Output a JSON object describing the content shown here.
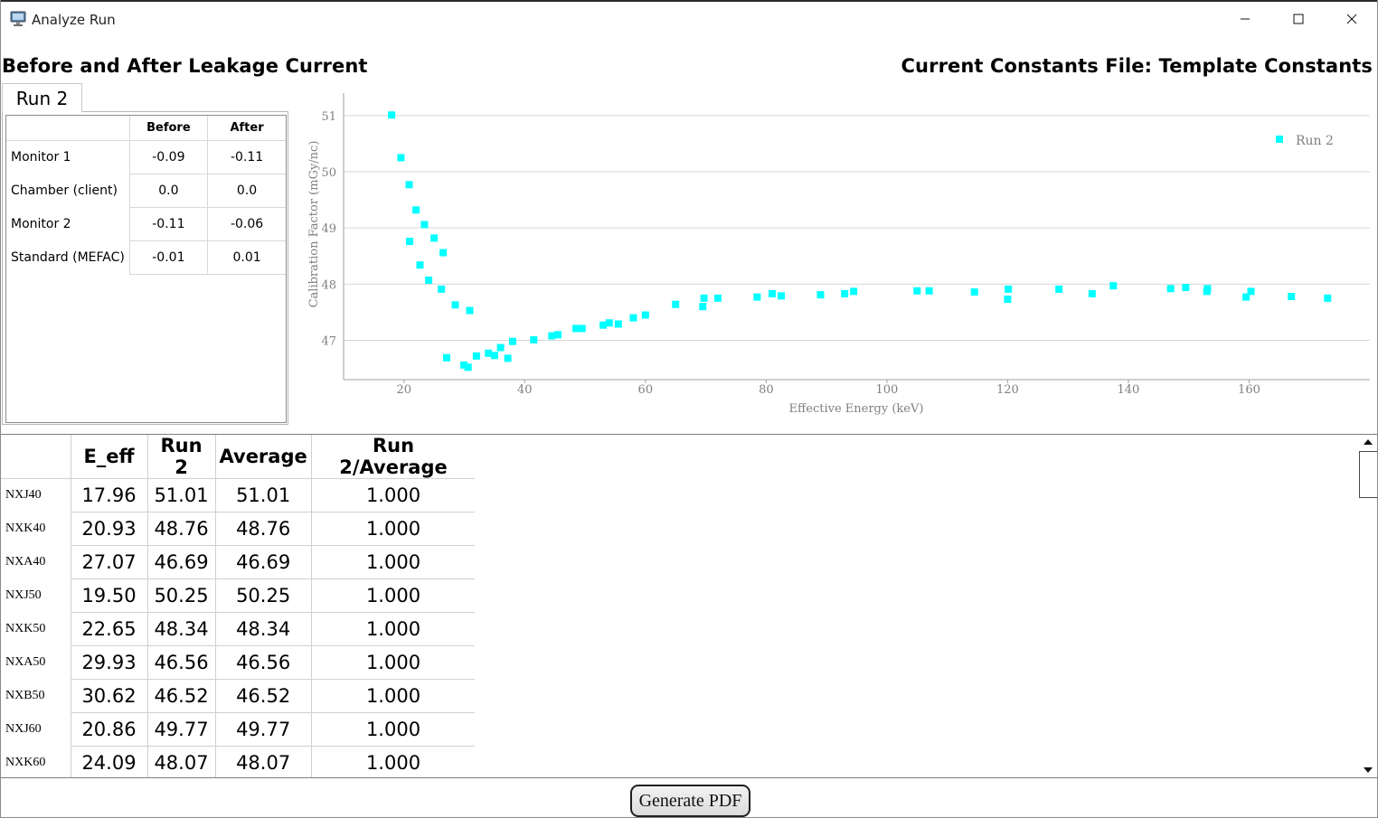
{
  "window": {
    "title": "Analyze Run",
    "icon": "monitor-app-icon"
  },
  "header": {
    "left_title": "Before and After Leakage Current",
    "right_title": "Current Constants File: Template Constants"
  },
  "tabs": [
    {
      "label": "Run 2",
      "selected": true
    }
  ],
  "leakage": {
    "columns": [
      "Before",
      "After"
    ],
    "rows": [
      {
        "label": "Monitor 1",
        "before": "-0.09",
        "after": "-0.11"
      },
      {
        "label": "Chamber (client)",
        "before": "0.0",
        "after": "0.0"
      },
      {
        "label": "Monitor 2",
        "before": "-0.11",
        "after": "-0.06"
      },
      {
        "label": "Standard (MEFAC)",
        "before": "-0.01",
        "after": "0.01"
      }
    ]
  },
  "chart_data": {
    "type": "scatter",
    "title": "",
    "xlabel": "Effective Energy (keV)",
    "ylabel": "Calibration Factor (mGy/nc)",
    "xlim": [
      10,
      180
    ],
    "ylim": [
      46.3,
      51.4
    ],
    "xticks": [
      "20",
      "40",
      "60",
      "80",
      "100",
      "120",
      "140",
      "160"
    ],
    "yticks": [
      "47",
      "48",
      "49",
      "50",
      "51"
    ],
    "grid": "horizontal",
    "legend": "top-right",
    "color": "#00ffff",
    "series": [
      {
        "name": "Run 2",
        "x": [
          17.96,
          19.5,
          20.86,
          20.93,
          22.0,
          22.65,
          23.4,
          24.09,
          25.0,
          26.2,
          27.07,
          26.5,
          28.5,
          29.93,
          30.62,
          30.9,
          32.0,
          34.0,
          35.0,
          36.0,
          37.2,
          38.0,
          41.5,
          44.5,
          45.5,
          48.5,
          49.5,
          53.0,
          54.0,
          55.5,
          58.0,
          60.0,
          65.0,
          69.5,
          69.7,
          72.0,
          78.5,
          81.0,
          82.5,
          89.0,
          93.0,
          94.5,
          105.0,
          107.0,
          114.5,
          120.0,
          120.1,
          128.5,
          134.0,
          137.5,
          147.0,
          149.5,
          153.0,
          153.1,
          159.5,
          160.3,
          167.0,
          173.0
        ],
        "y": [
          51.01,
          50.25,
          49.77,
          48.76,
          49.32,
          48.34,
          49.06,
          48.07,
          48.82,
          47.91,
          46.69,
          48.56,
          47.63,
          46.56,
          46.52,
          47.53,
          46.72,
          46.77,
          46.73,
          46.87,
          46.68,
          46.98,
          47.01,
          47.08,
          47.1,
          47.21,
          47.21,
          47.27,
          47.31,
          47.29,
          47.4,
          47.45,
          47.64,
          47.6,
          47.75,
          47.75,
          47.77,
          47.83,
          47.79,
          47.81,
          47.83,
          47.87,
          47.88,
          47.88,
          47.86,
          47.73,
          47.91,
          47.91,
          47.83,
          47.97,
          47.92,
          47.94,
          47.87,
          47.92,
          47.77,
          47.87,
          47.78,
          47.75
        ]
      }
    ]
  },
  "results": {
    "headers": [
      "E_eff",
      "Run 2",
      "Average",
      "Run 2/Average"
    ],
    "rows": [
      {
        "name": "NXJ40",
        "eeff": "17.96",
        "run": "51.01",
        "avg": "51.01",
        "ratio": "1.000"
      },
      {
        "name": "NXK40",
        "eeff": "20.93",
        "run": "48.76",
        "avg": "48.76",
        "ratio": "1.000"
      },
      {
        "name": "NXA40",
        "eeff": "27.07",
        "run": "46.69",
        "avg": "46.69",
        "ratio": "1.000"
      },
      {
        "name": "NXJ50",
        "eeff": "19.50",
        "run": "50.25",
        "avg": "50.25",
        "ratio": "1.000"
      },
      {
        "name": "NXK50",
        "eeff": "22.65",
        "run": "48.34",
        "avg": "48.34",
        "ratio": "1.000"
      },
      {
        "name": "NXA50",
        "eeff": "29.93",
        "run": "46.56",
        "avg": "46.56",
        "ratio": "1.000"
      },
      {
        "name": "NXB50",
        "eeff": "30.62",
        "run": "46.52",
        "avg": "46.52",
        "ratio": "1.000"
      },
      {
        "name": "NXJ60",
        "eeff": "20.86",
        "run": "49.77",
        "avg": "49.77",
        "ratio": "1.000"
      },
      {
        "name": "NXK60",
        "eeff": "24.09",
        "run": "48.07",
        "avg": "48.07",
        "ratio": "1.000"
      }
    ]
  },
  "footer": {
    "generate_label": "Generate PDF"
  }
}
